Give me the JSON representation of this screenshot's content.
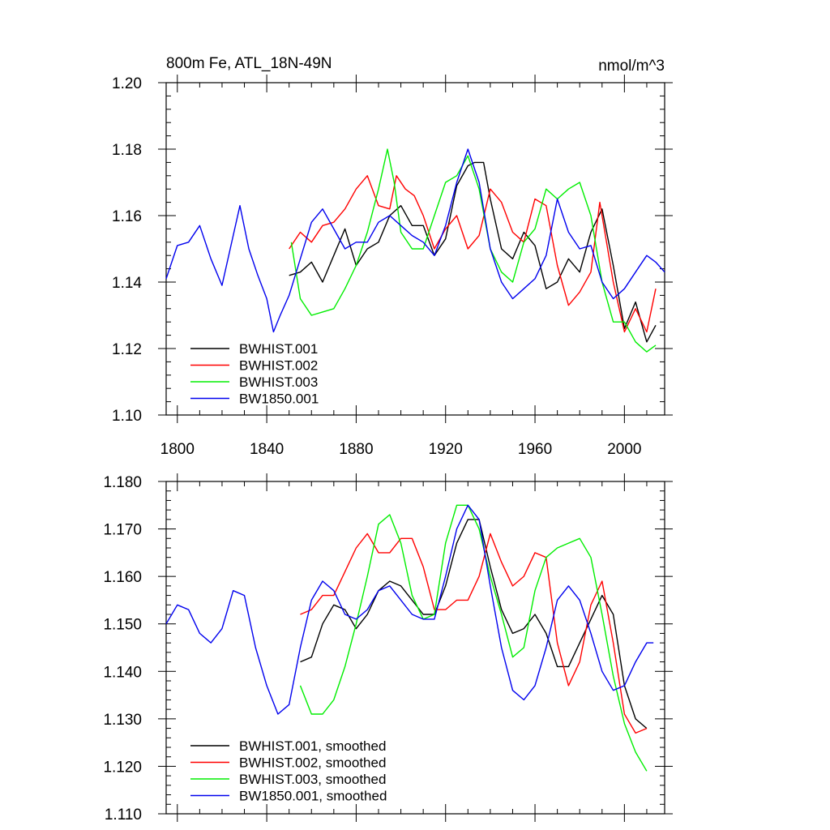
{
  "chart_data": [
    {
      "type": "line",
      "title": "800m Fe, ATL_18N-49N",
      "units": "nmol/m^3",
      "xlim": [
        1795,
        2018
      ],
      "ylim": [
        1.1,
        1.2
      ],
      "x_ticks": [
        1800,
        1840,
        1880,
        1920,
        1960,
        2000
      ],
      "x_tick_labels": [
        "1800",
        "1840",
        "1880",
        "1920",
        "1960",
        "2000"
      ],
      "y_ticks": [
        1.1,
        1.12,
        1.14,
        1.16,
        1.18,
        1.2
      ],
      "y_tick_labels": [
        "1.10",
        "1.12",
        "1.14",
        "1.16",
        "1.18",
        "1.20"
      ],
      "legend": "bottom-left",
      "series": [
        {
          "name": "BWHIST.001",
          "color": "#000000",
          "x": [
            1850,
            1855,
            1860,
            1865,
            1870,
            1875,
            1880,
            1885,
            1890,
            1895,
            1900,
            1905,
            1910,
            1915,
            1920,
            1925,
            1930,
            1933,
            1937,
            1940,
            1945,
            1950,
            1955,
            1960,
            1965,
            1970,
            1975,
            1980,
            1985,
            1990,
            1995,
            2000,
            2005,
            2010,
            2014
          ],
          "y": [
            1.142,
            1.143,
            1.146,
            1.14,
            1.148,
            1.156,
            1.145,
            1.15,
            1.152,
            1.16,
            1.163,
            1.157,
            1.157,
            1.148,
            1.153,
            1.169,
            1.175,
            1.176,
            1.176,
            1.165,
            1.15,
            1.147,
            1.155,
            1.151,
            1.138,
            1.14,
            1.147,
            1.143,
            1.155,
            1.162,
            1.145,
            1.126,
            1.134,
            1.122,
            1.127
          ]
        },
        {
          "name": "BWHIST.002",
          "color": "#ff0000",
          "x": [
            1850,
            1855,
            1860,
            1865,
            1870,
            1875,
            1880,
            1885,
            1890,
            1895,
            1898,
            1902,
            1906,
            1910,
            1915,
            1920,
            1925,
            1930,
            1935,
            1940,
            1945,
            1950,
            1955,
            1960,
            1965,
            1970,
            1975,
            1980,
            1985,
            1989,
            1995,
            2000,
            2005,
            2010,
            2014
          ],
          "y": [
            1.15,
            1.155,
            1.152,
            1.157,
            1.158,
            1.162,
            1.168,
            1.172,
            1.163,
            1.162,
            1.172,
            1.168,
            1.166,
            1.16,
            1.15,
            1.156,
            1.16,
            1.15,
            1.154,
            1.168,
            1.164,
            1.155,
            1.152,
            1.165,
            1.163,
            1.145,
            1.133,
            1.137,
            1.143,
            1.164,
            1.14,
            1.125,
            1.132,
            1.125,
            1.138
          ]
        },
        {
          "name": "BWHIST.003",
          "color": "#00ee00",
          "x": [
            1851,
            1855,
            1860,
            1865,
            1870,
            1875,
            1880,
            1885,
            1890,
            1894,
            1897,
            1900,
            1905,
            1910,
            1915,
            1920,
            1925,
            1930,
            1935,
            1940,
            1945,
            1950,
            1955,
            1960,
            1965,
            1970,
            1975,
            1980,
            1985,
            1990,
            1995,
            2000,
            2005,
            2010,
            2014
          ],
          "y": [
            1.152,
            1.135,
            1.13,
            1.131,
            1.132,
            1.138,
            1.145,
            1.155,
            1.168,
            1.18,
            1.17,
            1.155,
            1.15,
            1.15,
            1.16,
            1.17,
            1.172,
            1.178,
            1.168,
            1.15,
            1.143,
            1.14,
            1.152,
            1.156,
            1.168,
            1.165,
            1.168,
            1.17,
            1.16,
            1.14,
            1.128,
            1.128,
            1.122,
            1.119,
            1.121
          ]
        },
        {
          "name": "BW1850.001",
          "color": "#0000ee",
          "x": [
            1795,
            1800,
            1805,
            1810,
            1815,
            1820,
            1825,
            1828,
            1832,
            1836,
            1840,
            1843,
            1846,
            1850,
            1855,
            1860,
            1865,
            1870,
            1875,
            1880,
            1885,
            1890,
            1895,
            1900,
            1905,
            1910,
            1915,
            1920,
            1925,
            1930,
            1935,
            1940,
            1945,
            1950,
            1955,
            1960,
            1965,
            1970,
            1975,
            1980,
            1985,
            1990,
            1995,
            2000,
            2005,
            2010,
            2014,
            2018
          ],
          "y": [
            1.141,
            1.151,
            1.152,
            1.157,
            1.147,
            1.139,
            1.154,
            1.163,
            1.15,
            1.142,
            1.135,
            1.125,
            1.13,
            1.136,
            1.147,
            1.158,
            1.162,
            1.156,
            1.15,
            1.152,
            1.152,
            1.158,
            1.16,
            1.157,
            1.154,
            1.152,
            1.148,
            1.157,
            1.17,
            1.18,
            1.17,
            1.15,
            1.14,
            1.135,
            1.138,
            1.141,
            1.148,
            1.165,
            1.155,
            1.15,
            1.151,
            1.14,
            1.135,
            1.138,
            1.143,
            1.148,
            1.146,
            1.143
          ]
        }
      ]
    },
    {
      "type": "line",
      "title": "",
      "units": "",
      "xlim": [
        1795,
        2018
      ],
      "ylim": [
        1.11,
        1.18
      ],
      "x_ticks": [
        1800,
        1840,
        1880,
        1920,
        1960,
        2000
      ],
      "x_tick_labels": [],
      "y_ticks": [
        1.11,
        1.12,
        1.13,
        1.14,
        1.15,
        1.16,
        1.17,
        1.18
      ],
      "y_tick_labels": [
        "1.110",
        "1.120",
        "1.130",
        "1.140",
        "1.150",
        "1.160",
        "1.170",
        "1.180"
      ],
      "legend": "bottom-left",
      "series": [
        {
          "name": "BWHIST.001, smoothed",
          "color": "#000000",
          "x": [
            1855,
            1860,
            1865,
            1870,
            1875,
            1880,
            1885,
            1890,
            1895,
            1900,
            1905,
            1910,
            1915,
            1920,
            1925,
            1930,
            1935,
            1940,
            1945,
            1950,
            1955,
            1960,
            1965,
            1970,
            1975,
            1980,
            1985,
            1990,
            1995,
            2000,
            2005,
            2010
          ],
          "y": [
            1.142,
            1.143,
            1.15,
            1.154,
            1.153,
            1.149,
            1.152,
            1.157,
            1.159,
            1.158,
            1.155,
            1.152,
            1.152,
            1.158,
            1.167,
            1.172,
            1.172,
            1.162,
            1.153,
            1.148,
            1.149,
            1.152,
            1.148,
            1.141,
            1.141,
            1.146,
            1.151,
            1.156,
            1.152,
            1.137,
            1.13,
            1.128
          ]
        },
        {
          "name": "BWHIST.002, smoothed",
          "color": "#ff0000",
          "x": [
            1855,
            1860,
            1865,
            1870,
            1875,
            1880,
            1885,
            1890,
            1895,
            1900,
            1905,
            1910,
            1915,
            1920,
            1925,
            1930,
            1935,
            1940,
            1945,
            1950,
            1955,
            1960,
            1965,
            1970,
            1975,
            1980,
            1985,
            1990,
            1995,
            2000,
            2005,
            2010
          ],
          "y": [
            1.152,
            1.153,
            1.156,
            1.156,
            1.161,
            1.166,
            1.169,
            1.165,
            1.165,
            1.168,
            1.168,
            1.162,
            1.153,
            1.153,
            1.155,
            1.155,
            1.16,
            1.169,
            1.163,
            1.158,
            1.16,
            1.165,
            1.164,
            1.146,
            1.137,
            1.142,
            1.154,
            1.159,
            1.146,
            1.131,
            1.127,
            1.128
          ]
        },
        {
          "name": "BWHIST.003, smoothed",
          "color": "#00ee00",
          "x": [
            1855,
            1860,
            1865,
            1870,
            1875,
            1880,
            1885,
            1890,
            1895,
            1900,
            1905,
            1910,
            1915,
            1920,
            1925,
            1930,
            1935,
            1940,
            1945,
            1950,
            1955,
            1960,
            1965,
            1970,
            1975,
            1980,
            1985,
            1990,
            1995,
            2000,
            2005,
            2010
          ],
          "y": [
            1.137,
            1.131,
            1.131,
            1.134,
            1.141,
            1.15,
            1.16,
            1.171,
            1.173,
            1.167,
            1.156,
            1.151,
            1.152,
            1.167,
            1.175,
            1.175,
            1.17,
            1.16,
            1.152,
            1.143,
            1.145,
            1.157,
            1.164,
            1.166,
            1.167,
            1.168,
            1.164,
            1.152,
            1.139,
            1.129,
            1.123,
            1.119
          ]
        },
        {
          "name": "BW1850.001, smoothed",
          "color": "#0000ee",
          "x": [
            1795,
            1800,
            1805,
            1810,
            1815,
            1820,
            1825,
            1830,
            1835,
            1840,
            1845,
            1850,
            1855,
            1860,
            1865,
            1870,
            1875,
            1880,
            1885,
            1890,
            1895,
            1900,
            1905,
            1910,
            1915,
            1920,
            1925,
            1930,
            1935,
            1940,
            1945,
            1950,
            1955,
            1960,
            1965,
            1970,
            1975,
            1980,
            1985,
            1990,
            1995,
            2000,
            2005,
            2010,
            2013
          ],
          "y": [
            1.15,
            1.154,
            1.153,
            1.148,
            1.146,
            1.149,
            1.157,
            1.156,
            1.145,
            1.137,
            1.131,
            1.133,
            1.145,
            1.155,
            1.159,
            1.157,
            1.152,
            1.151,
            1.153,
            1.157,
            1.158,
            1.155,
            1.152,
            1.151,
            1.151,
            1.16,
            1.17,
            1.175,
            1.172,
            1.158,
            1.145,
            1.136,
            1.134,
            1.137,
            1.145,
            1.155,
            1.158,
            1.155,
            1.148,
            1.14,
            1.136,
            1.137,
            1.142,
            1.146,
            1.146
          ]
        }
      ]
    }
  ]
}
